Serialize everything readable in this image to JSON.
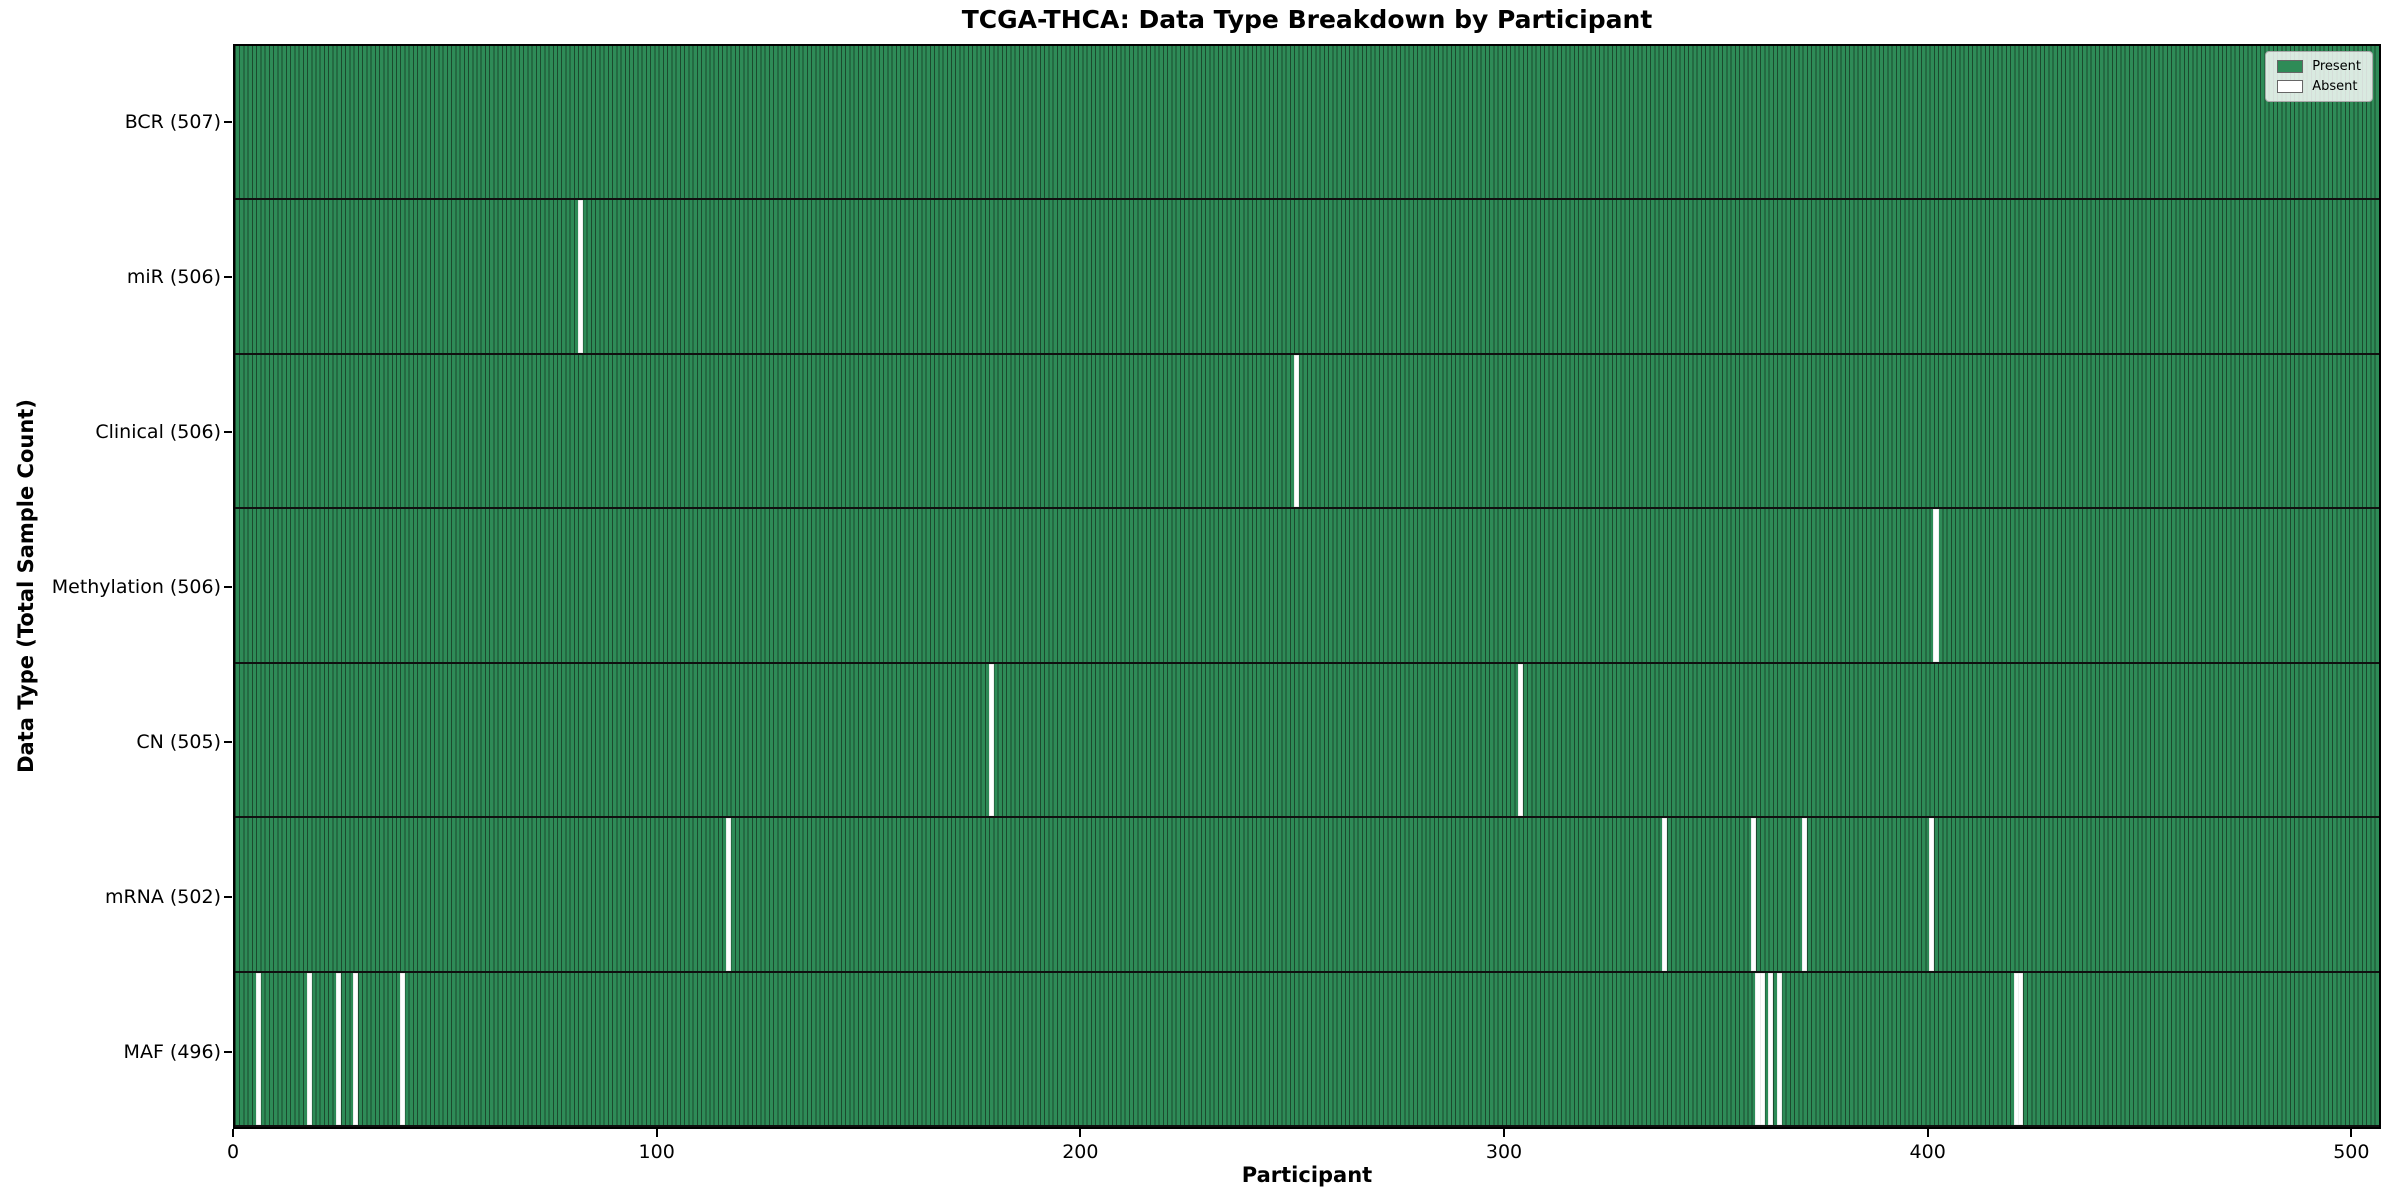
{
  "chart_data": {
    "type": "heatmap",
    "title": "TCGA-THCA: Data Type Breakdown by Participant",
    "xlabel": "Participant",
    "ylabel": "Data Type (Total Sample Count)",
    "x_ticks": [
      0,
      100,
      200,
      300,
      400,
      500
    ],
    "xlim": [
      0,
      507
    ],
    "n_participants": 507,
    "grid": false,
    "legend_position": "upper right",
    "legend": [
      {
        "label": "Present",
        "color": "#2e8b57"
      },
      {
        "label": "Absent",
        "color": "#ffffff"
      }
    ],
    "rows": [
      {
        "data_type": "BCR",
        "total_samples": 507,
        "label": "BCR (507)",
        "absent_participants": []
      },
      {
        "data_type": "miR",
        "total_samples": 506,
        "label": "miR (506)",
        "absent_participants": [
          81
        ]
      },
      {
        "data_type": "Clinical",
        "total_samples": 506,
        "label": "Clinical (506)",
        "absent_participants": [
          250
        ]
      },
      {
        "data_type": "Methylation",
        "total_samples": 506,
        "label": "Methylation (506)",
        "absent_participants": [
          401
        ]
      },
      {
        "data_type": "CN",
        "total_samples": 505,
        "label": "CN (505)",
        "absent_participants": [
          178,
          303
        ]
      },
      {
        "data_type": "mRNA",
        "total_samples": 502,
        "label": "mRNA (502)",
        "absent_participants": [
          116,
          337,
          358,
          370,
          400
        ]
      },
      {
        "data_type": "MAF",
        "total_samples": 496,
        "label": "MAF (496)",
        "absent_participants": [
          5,
          17,
          24,
          28,
          39,
          359,
          360,
          362,
          364,
          420,
          421
        ]
      }
    ]
  },
  "colors": {
    "present": "#2e8b57",
    "absent": "#ffffff",
    "bar_edge": "#1b4a2e",
    "row_divider": "#101010",
    "plot_border": "#000000",
    "tick": "#000000",
    "legend_border": "#a8a8a8"
  }
}
